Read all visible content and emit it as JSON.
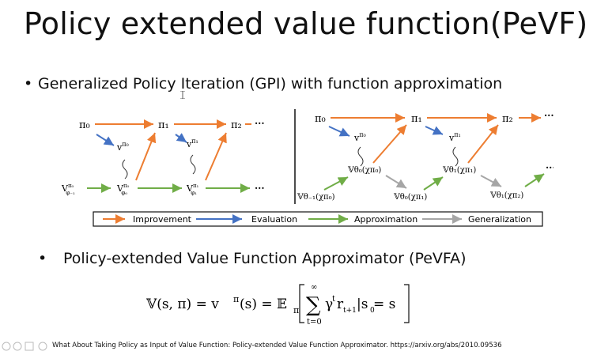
{
  "slide": {
    "title": "Policy extended value function(PeVF)",
    "bullet1": "Generalized Policy Iteration (GPI) with function approximation",
    "bullet2": "Policy-extended Value Function Approximator (PeVFA)",
    "citation": "What About Taking Policy as Input of Value Function: Policy-extended Value Function Approximator. https://arxiv.org/abs/2010.09536"
  },
  "legend": {
    "improvement": "Improvement",
    "evaluation": "Evaluation",
    "approximation": "Approximation",
    "generalization": "Generalization"
  },
  "colors": {
    "improvement": "#ed7d31",
    "evaluation": "#4472c4",
    "approximation": "#70ad47",
    "generalization": "#a6a6a6"
  },
  "left": {
    "pi0": "π₀",
    "pi1": "π₁",
    "pi2": "π₂",
    "dots": "···",
    "v0": "v^π₀",
    "v1": "v^π₁",
    "phi_m1": "V^π₀_φ₋₁",
    "phi0": "V^π₀_φ₀",
    "phi1": "V^π₁_φ₁"
  },
  "right": {
    "pi0": "π₀",
    "pi1": "π₁",
    "pi2": "π₂",
    "dots": "···",
    "v0": "v^π₀",
    "v1": "v^π₁",
    "a": "𝕍θ₀(χπ₀)",
    "b": "𝕍θ₋₁(χπ₀)",
    "c": "𝕍θ₀(χπ₁)",
    "d": "𝕍θ₁(χπ₁)",
    "e": "𝕍θ₁(χπ₂)"
  },
  "formula": {
    "lhs": "𝕍(s, π) = v",
    "pi_sup": "π",
    "mid": "(s) = 𝔼",
    "pi_sub": "π",
    "sum_top": "∞",
    "sum_bottom": "t=0",
    "gamma": "γ",
    "t_sup": "t",
    "r": "r",
    "r_sub": "t+1",
    "cond": "|s",
    "s_sub": "0",
    "rhs": " = s"
  }
}
